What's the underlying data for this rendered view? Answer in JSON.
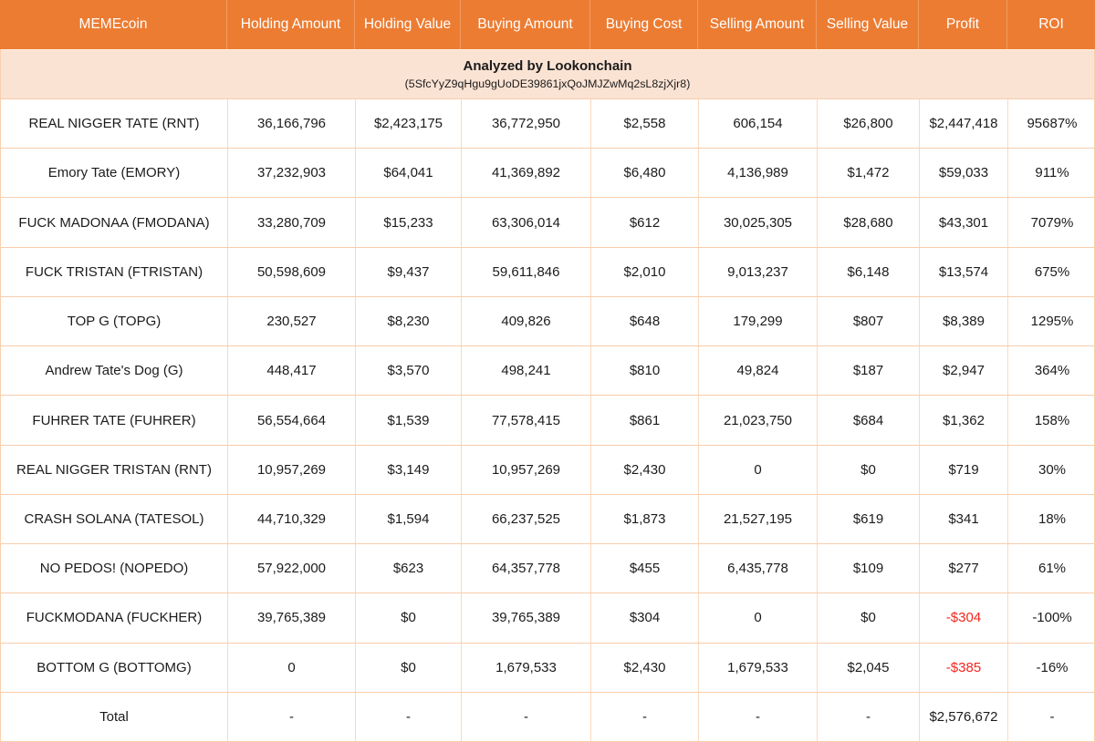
{
  "colors": {
    "header_bg": "#ec7c32",
    "header_text": "#ffffff",
    "banner_bg": "#fbe3d4",
    "row_bg": "#ffffff",
    "grid_border": "#f8cdab",
    "header_divider": "#f09c5f",
    "body_text": "#1b1b1b",
    "negative_text": "#f5251d"
  },
  "chart_data": {
    "type": "table",
    "banner": {
      "title": "Analyzed by Lookonchain",
      "address": "(5SfcYyZ9qHgu9gUoDE39861jxQoJMJZwMq2sL8zjXjr8)"
    },
    "columns": [
      "MEMEcoin",
      "Holding Amount",
      "Holding Value",
      "Buying Amount",
      "Buying Cost",
      "Selling Amount",
      "Selling Value",
      "Profit",
      "ROI"
    ],
    "rows": [
      [
        "REAL NIGGER TATE (RNT)",
        "36,166,796",
        "$2,423,175",
        "36,772,950",
        "$2,558",
        "606,154",
        "$26,800",
        "$2,447,418",
        "95687%"
      ],
      [
        "Emory Tate (EMORY)",
        "37,232,903",
        "$64,041",
        "41,369,892",
        "$6,480",
        "4,136,989",
        "$1,472",
        "$59,033",
        "911%"
      ],
      [
        "FUCK MADONAA (FMODANA)",
        "33,280,709",
        "$15,233",
        "63,306,014",
        "$612",
        "30,025,305",
        "$28,680",
        "$43,301",
        "7079%"
      ],
      [
        "FUCK TRISTAN (FTRISTAN)",
        "50,598,609",
        "$9,437",
        "59,611,846",
        "$2,010",
        "9,013,237",
        "$6,148",
        "$13,574",
        "675%"
      ],
      [
        "TOP G (TOPG)",
        "230,527",
        "$8,230",
        "409,826",
        "$648",
        "179,299",
        "$807",
        "$8,389",
        "1295%"
      ],
      [
        "Andrew Tate's Dog (G)",
        "448,417",
        "$3,570",
        "498,241",
        "$810",
        "49,824",
        "$187",
        "$2,947",
        "364%"
      ],
      [
        "FUHRER TATE (FUHRER)",
        "56,554,664",
        "$1,539",
        "77,578,415",
        "$861",
        "21,023,750",
        "$684",
        "$1,362",
        "158%"
      ],
      [
        "REAL NIGGER TRISTAN (RNT)",
        "10,957,269",
        "$3,149",
        "10,957,269",
        "$2,430",
        "0",
        "$0",
        "$719",
        "30%"
      ],
      [
        "CRASH SOLANA (TATESOL)",
        "44,710,329",
        "$1,594",
        "66,237,525",
        "$1,873",
        "21,527,195",
        "$619",
        "$341",
        "18%"
      ],
      [
        "NO PEDOS! (NOPEDO)",
        "57,922,000",
        "$623",
        "64,357,778",
        "$455",
        "6,435,778",
        "$109",
        "$277",
        "61%"
      ],
      [
        "FUCKMODANA (FUCKHER)",
        "39,765,389",
        "$0",
        "39,765,389",
        "$304",
        "0",
        "$0",
        "-$304",
        "-100%"
      ],
      [
        "BOTTOM G (BOTTOMG)",
        "0",
        "$0",
        "1,679,533",
        "$2,430",
        "1,679,533",
        "$2,045",
        "-$385",
        "-16%"
      ]
    ],
    "total_row": [
      "Total",
      "-",
      "-",
      "-",
      "-",
      "-",
      "-",
      "$2,576,672",
      "-"
    ]
  }
}
